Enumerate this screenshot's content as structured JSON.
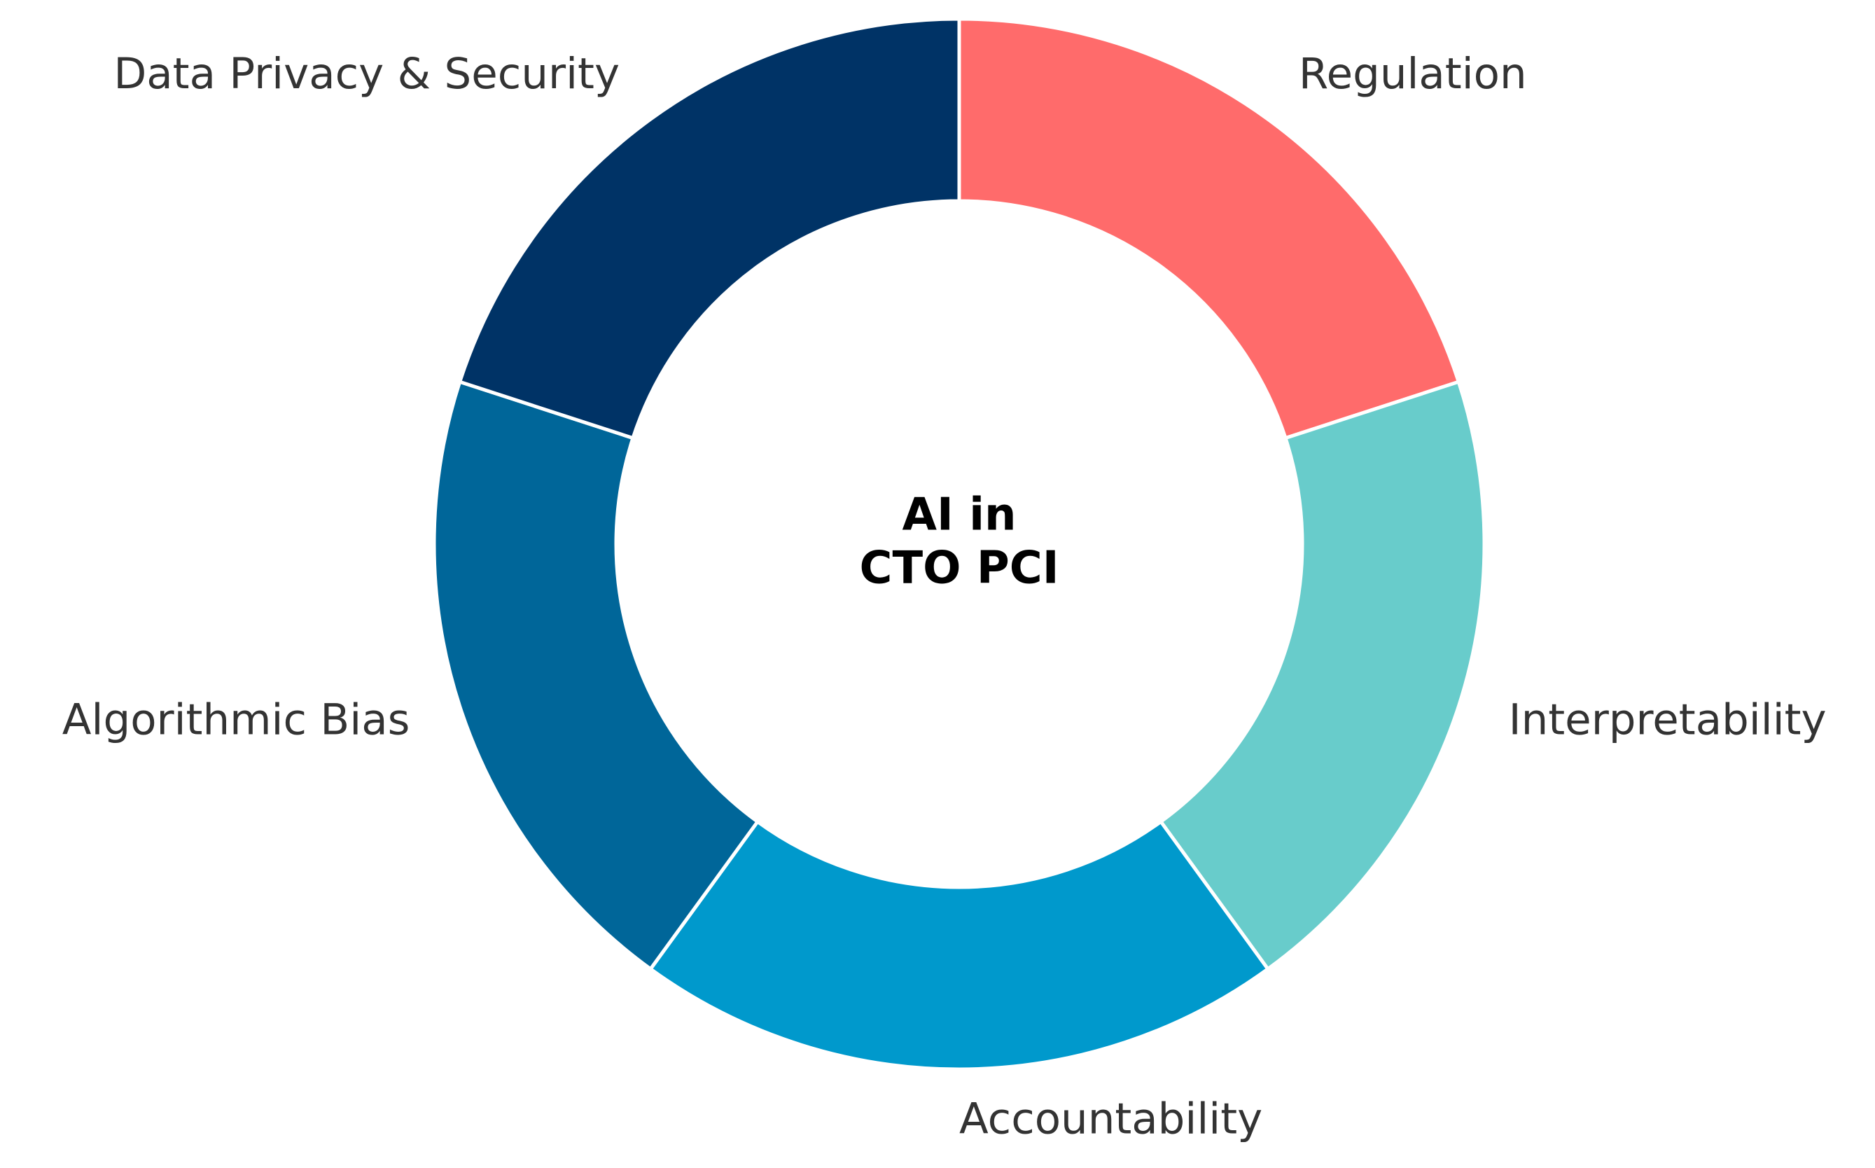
{
  "chart_data": {
    "type": "pie",
    "center_label": [
      "AI in",
      "CTO PCI"
    ],
    "categories": [
      "Regulation",
      "Interpretability",
      "Accountability",
      "Algorithmic Bias",
      "Data Privacy & Security"
    ],
    "values": [
      20,
      20,
      20,
      20,
      20
    ],
    "colors": [
      "#ff6b6b",
      "#68cccb",
      "#0099cc",
      "#006699",
      "#003366"
    ]
  }
}
